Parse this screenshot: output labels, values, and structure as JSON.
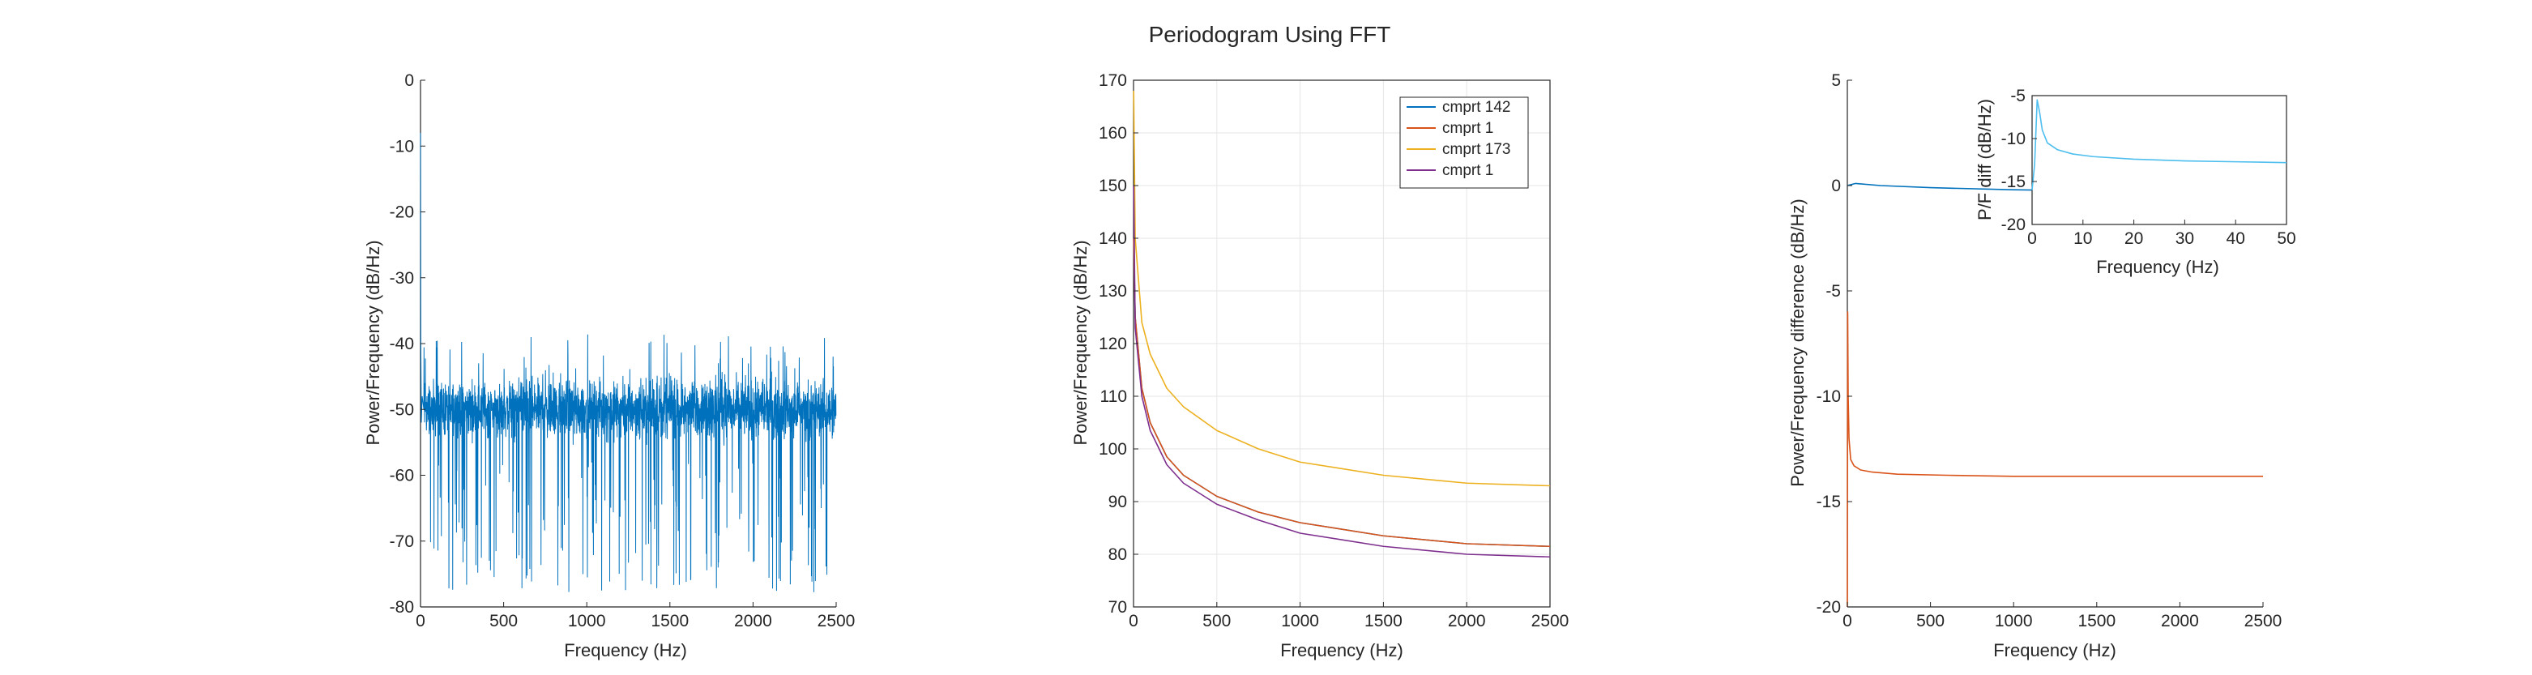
{
  "figure": {
    "title": "Periodogram Using FFT"
  },
  "chart_data": [
    {
      "type": "line",
      "panel": "left",
      "xlabel": "Frequency (Hz)",
      "ylabel": "Power/Frequency (dB/Hz)",
      "xlim": [
        0,
        2500
      ],
      "ylim": [
        -80,
        0
      ],
      "xticks": [
        0,
        500,
        1000,
        1500,
        2000,
        2500
      ],
      "yticks": [
        -80,
        -70,
        -60,
        -50,
        -40,
        -30,
        -20,
        -10,
        0
      ],
      "grid": false,
      "color": "#0072BD",
      "description": "noise-like periodogram; spike near 0 Hz reaching about -8 dB/Hz, then fluctuating around -50 dB/Hz between about -78 and -38",
      "series": [
        {
          "name": "",
          "x": [
            0,
            2,
            5,
            10,
            20,
            2500
          ],
          "y": [
            -8,
            -40,
            -52,
            -48,
            -50,
            -50
          ],
          "noise": {
            "mean": -50,
            "upper_extreme": -38,
            "lower_extreme": -78
          }
        }
      ]
    },
    {
      "type": "line",
      "panel": "middle",
      "xlabel": "Frequency (Hz)",
      "ylabel": "Power/Frequency (dB/Hz)",
      "xlim": [
        0,
        2500
      ],
      "ylim": [
        70,
        170
      ],
      "xticks": [
        0,
        500,
        1000,
        1500,
        2000,
        2500
      ],
      "yticks": [
        70,
        80,
        90,
        100,
        110,
        120,
        130,
        140,
        150,
        160,
        170
      ],
      "grid": true,
      "legend_position": "top-right",
      "series": [
        {
          "name": "cmprt 142",
          "color": "#0072BD",
          "x": [
            1,
            10,
            50,
            100,
            200,
            300,
            500,
            750,
            1000,
            1500,
            2000,
            2500
          ],
          "y": [
            140,
            125,
            111.5,
            105,
            98.5,
            95,
            91,
            88,
            86,
            83.5,
            82,
            81.5
          ]
        },
        {
          "name": "cmprt 1",
          "color": "#D95319",
          "x": [
            1,
            10,
            50,
            100,
            200,
            300,
            500,
            750,
            1000,
            1500,
            2000,
            2500
          ],
          "y": [
            140,
            125,
            111.5,
            105,
            98.5,
            95,
            91,
            88,
            86,
            83.5,
            82,
            81.5
          ]
        },
        {
          "name": "cmprt 173",
          "color": "#EDB120",
          "x": [
            1,
            10,
            50,
            100,
            200,
            300,
            500,
            750,
            1000,
            1500,
            2000,
            2500
          ],
          "y": [
            168,
            140,
            124,
            118,
            111.5,
            108,
            103.5,
            100,
            97.5,
            95,
            93.5,
            93
          ]
        },
        {
          "name": "cmprt 1",
          "color": "#7E2F8E",
          "x": [
            1,
            10,
            50,
            100,
            200,
            300,
            500,
            750,
            1000,
            1500,
            2000,
            2500
          ],
          "y": [
            150,
            123,
            110,
            103.5,
            97,
            93.5,
            89.5,
            86.5,
            84,
            81.5,
            80,
            79.5
          ]
        }
      ]
    },
    {
      "type": "line",
      "panel": "right",
      "xlabel": "Frequency (Hz)",
      "ylabel": "Power/Frequency difference (dB/Hz)",
      "xlim": [
        0,
        2500
      ],
      "ylim": [
        -20,
        5
      ],
      "xticks": [
        0,
        500,
        1000,
        1500,
        2000,
        2500
      ],
      "yticks": [
        -20,
        -15,
        -10,
        -5,
        0,
        5
      ],
      "grid": false,
      "series": [
        {
          "name": "",
          "color": "#0072BD",
          "x": [
            0,
            50,
            200,
            500,
            1000,
            1500,
            2000,
            2500
          ],
          "y": [
            0,
            0.1,
            0,
            -0.1,
            -0.2,
            -0.25,
            -0.3,
            -0.3
          ]
        },
        {
          "name": "",
          "color": "#D95319",
          "x": [
            0,
            2,
            5,
            10,
            20,
            40,
            80,
            150,
            300,
            600,
            1000,
            2000,
            2500
          ],
          "y": [
            -20,
            -6,
            -10,
            -12,
            -13,
            -13.3,
            -13.5,
            -13.6,
            -13.7,
            -13.75,
            -13.8,
            -13.8,
            -13.8
          ]
        }
      ]
    },
    {
      "type": "line",
      "panel": "right-inset",
      "xlabel": "Frequency (Hz)",
      "ylabel": "P/F diff (dB/Hz)",
      "xlim": [
        0,
        50
      ],
      "ylim": [
        -20,
        -5
      ],
      "xticks": [
        0,
        10,
        20,
        30,
        40,
        50
      ],
      "yticks": [
        -20,
        -15,
        -10,
        -5
      ],
      "grid": false,
      "series": [
        {
          "name": "",
          "color": "#4DBEEE",
          "x": [
            0,
            0.5,
            1,
            1.5,
            2,
            3,
            5,
            8,
            12,
            20,
            30,
            40,
            50
          ],
          "y": [
            -16,
            -13,
            -5.5,
            -7,
            -9,
            -10.5,
            -11.3,
            -11.8,
            -12.1,
            -12.4,
            -12.6,
            -12.7,
            -12.8
          ]
        }
      ]
    }
  ]
}
